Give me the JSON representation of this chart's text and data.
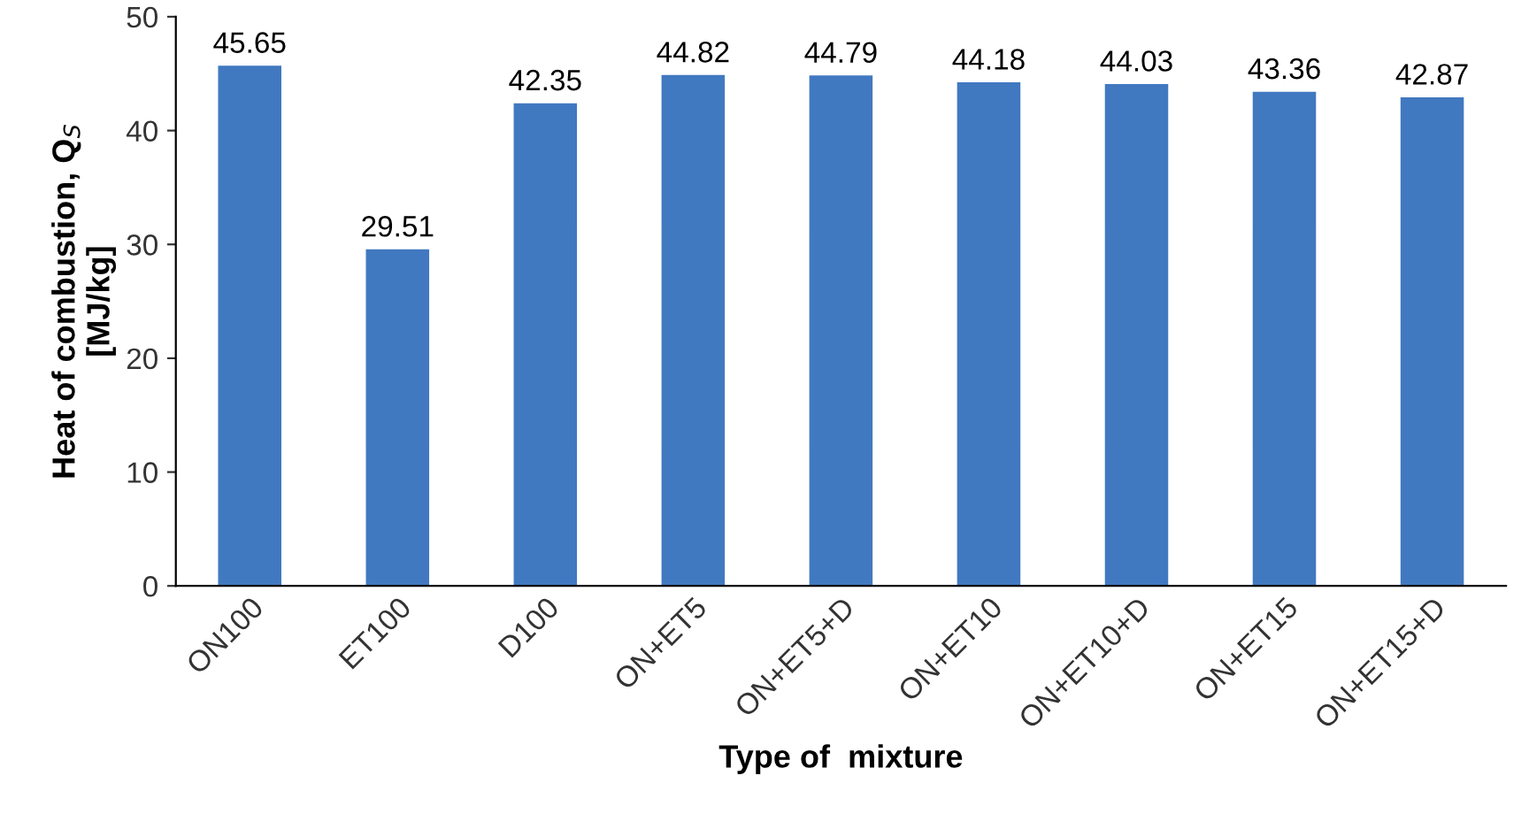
{
  "chart_data": {
    "type": "bar",
    "xlabel": "Type of  mixture",
    "ylabel": "Heat of combustion, Q$_{S}$\n[MJ/kg]",
    "categories": [
      "ON100",
      "ET100",
      "D100",
      "ON+ET5",
      "ON+ET5+D",
      "ON+ET10",
      "ON+ET10+D",
      "ON+ET15",
      "ON+ET15+D"
    ],
    "values": [
      45.65,
      29.51,
      42.35,
      44.82,
      44.79,
      44.18,
      44.03,
      43.36,
      42.87
    ],
    "color": "#4179c0",
    "ylim": [
      0,
      50
    ],
    "yticks": [
      0,
      10,
      20,
      30,
      40,
      50
    ],
    "data_labels": true,
    "grid": false,
    "legend": false
  }
}
